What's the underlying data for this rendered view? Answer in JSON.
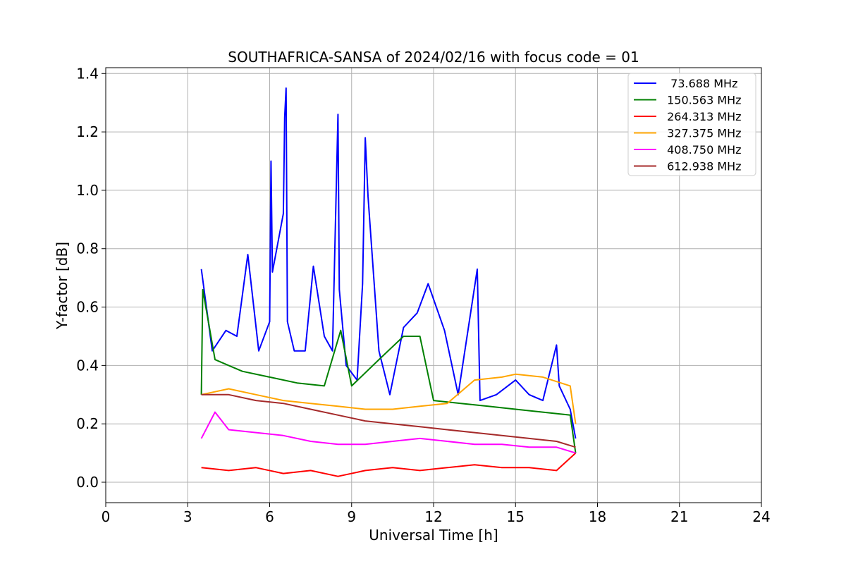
{
  "chart_data": {
    "type": "line",
    "title": "SOUTHAFRICA-SANSA of 2024/02/16 with focus code = 01",
    "xlabel": "Universal Time [h]",
    "ylabel": "Y-factor [dB]",
    "xlim": [
      0,
      24
    ],
    "ylim": [
      -0.07,
      1.42
    ],
    "xticks": [
      0,
      3,
      6,
      9,
      12,
      15,
      18,
      21,
      24
    ],
    "xtick_labels": [
      "0",
      "3",
      "6",
      "9",
      "12",
      "15",
      "18",
      "21",
      "24"
    ],
    "yticks": [
      0.0,
      0.2,
      0.4,
      0.6,
      0.8,
      1.0,
      1.2,
      1.4
    ],
    "ytick_labels": [
      "0.0",
      "0.2",
      "0.4",
      "0.6",
      "0.8",
      "1.0",
      "1.2",
      "1.4"
    ],
    "grid": true,
    "legend_position": "top-right",
    "series": [
      {
        "name": "  73.688 MHz",
        "color": "#0000ff",
        "x": [
          3.5,
          3.9,
          4.4,
          4.8,
          5.2,
          5.6,
          6.0,
          6.05,
          6.1,
          6.5,
          6.55,
          6.6,
          6.65,
          6.9,
          7.3,
          7.6,
          8.0,
          8.3,
          8.5,
          8.55,
          8.8,
          9.2,
          9.4,
          9.5,
          9.6,
          10.0,
          10.4,
          10.9,
          11.4,
          11.8,
          12.4,
          12.9,
          13.6,
          13.7,
          14.3,
          15.0,
          15.5,
          16.0,
          16.5,
          16.6,
          17.0,
          17.2
        ],
        "y": [
          0.73,
          0.45,
          0.52,
          0.5,
          0.78,
          0.45,
          0.55,
          1.1,
          0.72,
          0.92,
          1.25,
          1.35,
          0.55,
          0.45,
          0.45,
          0.74,
          0.5,
          0.45,
          1.26,
          0.66,
          0.4,
          0.35,
          0.68,
          1.18,
          0.98,
          0.45,
          0.3,
          0.53,
          0.58,
          0.68,
          0.52,
          0.3,
          0.73,
          0.28,
          0.3,
          0.35,
          0.3,
          0.28,
          0.47,
          0.33,
          0.25,
          0.15
        ]
      },
      {
        "name": " 150.563 MHz",
        "color": "#008000",
        "x": [
          3.5,
          3.55,
          4.0,
          4.5,
          5.0,
          6.0,
          7.0,
          8.0,
          8.6,
          9.0,
          10.0,
          10.9,
          11.5,
          12.0,
          13.0,
          14.0,
          15.0,
          16.0,
          17.0,
          17.2
        ],
        "y": [
          0.3,
          0.66,
          0.42,
          0.4,
          0.38,
          0.36,
          0.34,
          0.33,
          0.52,
          0.33,
          0.42,
          0.5,
          0.5,
          0.28,
          0.27,
          0.26,
          0.25,
          0.24,
          0.23,
          0.1
        ]
      },
      {
        "name": " 264.313 MHz",
        "color": "#ff0000",
        "x": [
          3.5,
          4.5,
          5.5,
          6.5,
          7.5,
          8.5,
          9.5,
          10.5,
          11.5,
          12.5,
          13.5,
          14.5,
          15.5,
          16.5,
          17.2
        ],
        "y": [
          0.05,
          0.04,
          0.05,
          0.03,
          0.04,
          0.02,
          0.04,
          0.05,
          0.04,
          0.05,
          0.06,
          0.05,
          0.05,
          0.04,
          0.1
        ]
      },
      {
        "name": " 327.375 MHz",
        "color": "#ffa500",
        "x": [
          3.5,
          4.5,
          5.5,
          6.5,
          7.5,
          8.5,
          9.5,
          10.5,
          11.5,
          12.5,
          13.5,
          14.5,
          15.0,
          16.0,
          17.0,
          17.2
        ],
        "y": [
          0.3,
          0.32,
          0.3,
          0.28,
          0.27,
          0.26,
          0.25,
          0.25,
          0.26,
          0.27,
          0.35,
          0.36,
          0.37,
          0.36,
          0.33,
          0.2
        ]
      },
      {
        "name": " 408.750 MHz",
        "color": "#ff00ff",
        "x": [
          3.5,
          4.0,
          4.5,
          5.5,
          6.5,
          7.5,
          8.5,
          9.5,
          10.5,
          11.5,
          12.5,
          13.5,
          14.5,
          15.5,
          16.5,
          17.2
        ],
        "y": [
          0.15,
          0.24,
          0.18,
          0.17,
          0.16,
          0.14,
          0.13,
          0.13,
          0.14,
          0.15,
          0.14,
          0.13,
          0.13,
          0.12,
          0.12,
          0.1
        ]
      },
      {
        "name": " 612.938 MHz",
        "color": "#a52a2a",
        "x": [
          3.5,
          4.5,
          5.5,
          6.5,
          7.5,
          8.5,
          9.5,
          10.5,
          11.5,
          12.5,
          13.5,
          14.5,
          15.5,
          16.5,
          17.2
        ],
        "y": [
          0.3,
          0.3,
          0.28,
          0.27,
          0.25,
          0.23,
          0.21,
          0.2,
          0.19,
          0.18,
          0.17,
          0.16,
          0.15,
          0.14,
          0.12
        ]
      }
    ]
  }
}
